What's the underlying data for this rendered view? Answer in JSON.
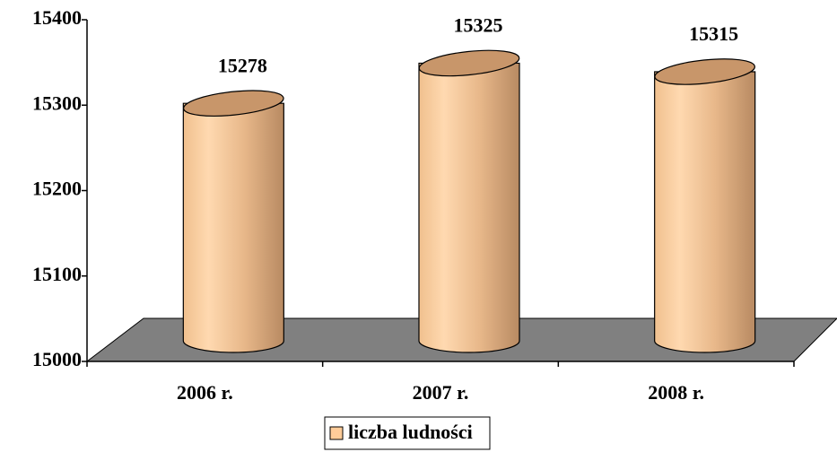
{
  "chart_data": {
    "type": "bar",
    "categories": [
      "2006 r.",
      "2007 r.",
      "2008 r."
    ],
    "series": [
      {
        "name": "liczba ludności",
        "color": "#ffcc99",
        "values": [
          15278,
          15325,
          15315
        ]
      }
    ],
    "ylim": [
      15000,
      15400
    ],
    "yticks": [
      15000,
      15100,
      15200,
      15300,
      15400
    ],
    "legend": "bottom"
  }
}
